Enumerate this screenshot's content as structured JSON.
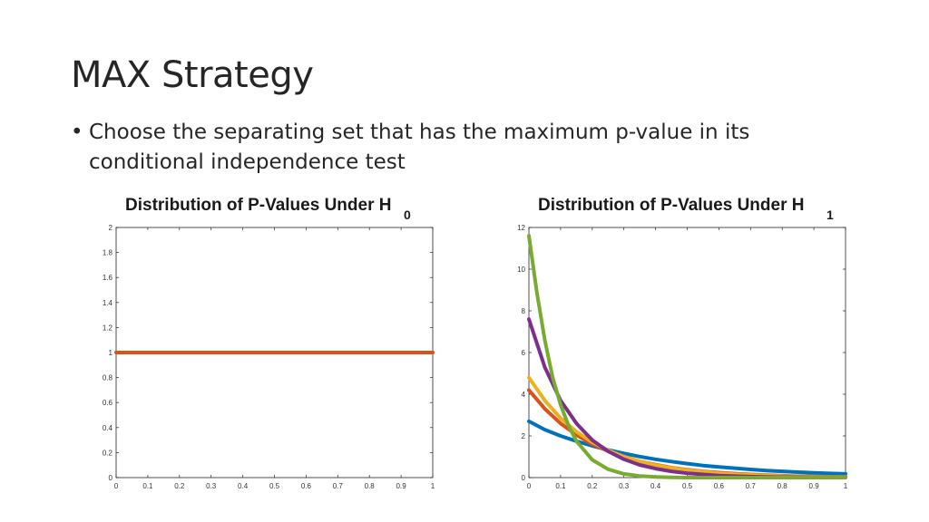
{
  "slide": {
    "title": "MAX Strategy",
    "bullet_symbol": "•",
    "bullet": "Choose the separating set that has the maximum p-value in its conditional independence test"
  },
  "chart_data": [
    {
      "type": "line",
      "title": "Distribution of P-Values Under H",
      "title_subscript": "0",
      "xlim": [
        0,
        1
      ],
      "ylim": [
        0,
        2
      ],
      "x_ticks": [
        "0",
        "0.1",
        "0.2",
        "0.3",
        "0.4",
        "0.5",
        "0.6",
        "0.7",
        "0.8",
        "0.9",
        "1"
      ],
      "y_ticks": [
        "0",
        "0.2",
        "0.4",
        "0.6",
        "0.8",
        "1",
        "1.2",
        "1.4",
        "1.6",
        "1.8",
        "2"
      ],
      "grid": false,
      "series": [
        {
          "color": "#d95319",
          "x": [
            0,
            0.5,
            1
          ],
          "y": [
            1,
            1,
            1
          ]
        }
      ]
    },
    {
      "type": "line",
      "title": "Distribution of P-Values Under H",
      "title_subscript": "1",
      "xlim": [
        0,
        1
      ],
      "ylim": [
        0,
        12
      ],
      "x_ticks": [
        "0",
        "0.1",
        "0.2",
        "0.3",
        "0.4",
        "0.5",
        "0.6",
        "0.7",
        "0.8",
        "0.9",
        "1"
      ],
      "y_ticks": [
        "0",
        "2",
        "4",
        "6",
        "8",
        "10",
        "12"
      ],
      "grid": false,
      "series": [
        {
          "color": "#0072bd",
          "x": [
            0,
            0.05,
            0.1,
            0.15,
            0.2,
            0.25,
            0.3,
            0.35,
            0.4,
            0.45,
            0.5,
            0.55,
            0.6,
            0.65,
            0.7,
            0.75,
            0.8,
            0.85,
            0.9,
            0.95,
            1
          ],
          "y": [
            2.7,
            2.3,
            2.0,
            1.75,
            1.52,
            1.33,
            1.16,
            1.01,
            0.88,
            0.77,
            0.67,
            0.58,
            0.51,
            0.45,
            0.39,
            0.34,
            0.3,
            0.26,
            0.23,
            0.2,
            0.18
          ]
        },
        {
          "color": "#d95319",
          "x": [
            0,
            0.05,
            0.1,
            0.15,
            0.2,
            0.25,
            0.3,
            0.35,
            0.4,
            0.45,
            0.5,
            0.55,
            0.6,
            0.65,
            0.7,
            0.75,
            0.8,
            0.85,
            0.9,
            0.95,
            1
          ],
          "y": [
            4.2,
            3.3,
            2.6,
            2.05,
            1.6,
            1.27,
            1.0,
            0.78,
            0.62,
            0.48,
            0.38,
            0.3,
            0.24,
            0.19,
            0.15,
            0.12,
            0.09,
            0.07,
            0.06,
            0.04,
            0.03
          ]
        },
        {
          "color": "#edb120",
          "x": [
            0,
            0.05,
            0.1,
            0.15,
            0.2,
            0.25,
            0.3,
            0.35,
            0.4,
            0.45,
            0.5,
            0.55,
            0.6,
            0.65,
            0.7,
            0.75,
            0.8,
            0.85,
            0.9,
            0.95,
            1
          ],
          "y": [
            4.8,
            3.7,
            2.85,
            2.2,
            1.7,
            1.31,
            1.01,
            0.78,
            0.6,
            0.46,
            0.36,
            0.28,
            0.21,
            0.16,
            0.13,
            0.1,
            0.07,
            0.06,
            0.04,
            0.03,
            0.03
          ]
        },
        {
          "color": "#7e2f8e",
          "x": [
            0,
            0.05,
            0.1,
            0.15,
            0.2,
            0.25,
            0.3,
            0.35,
            0.4,
            0.45,
            0.5,
            0.55,
            0.6,
            0.65,
            0.7,
            0.75,
            0.8,
            0.85,
            0.9,
            0.95,
            1
          ],
          "y": [
            7.6,
            5.3,
            3.7,
            2.6,
            1.8,
            1.26,
            0.88,
            0.61,
            0.43,
            0.3,
            0.21,
            0.15,
            0.1,
            0.07,
            0.05,
            0.03,
            0.02,
            0.02,
            0.01,
            0.01,
            0.01
          ]
        },
        {
          "color": "#77ac30",
          "x": [
            0,
            0.025,
            0.05,
            0.075,
            0.1,
            0.125,
            0.15,
            0.2,
            0.25,
            0.3,
            0.35,
            0.4,
            0.45,
            0.5,
            0.6,
            0.7,
            0.8,
            0.9,
            1
          ],
          "y": [
            11.6,
            8.9,
            6.6,
            4.8,
            3.5,
            2.5,
            1.75,
            0.85,
            0.4,
            0.18,
            0.08,
            0.03,
            0.01,
            0.0,
            0.0,
            0.0,
            0.0,
            0.0,
            0.0
          ]
        }
      ]
    }
  ]
}
